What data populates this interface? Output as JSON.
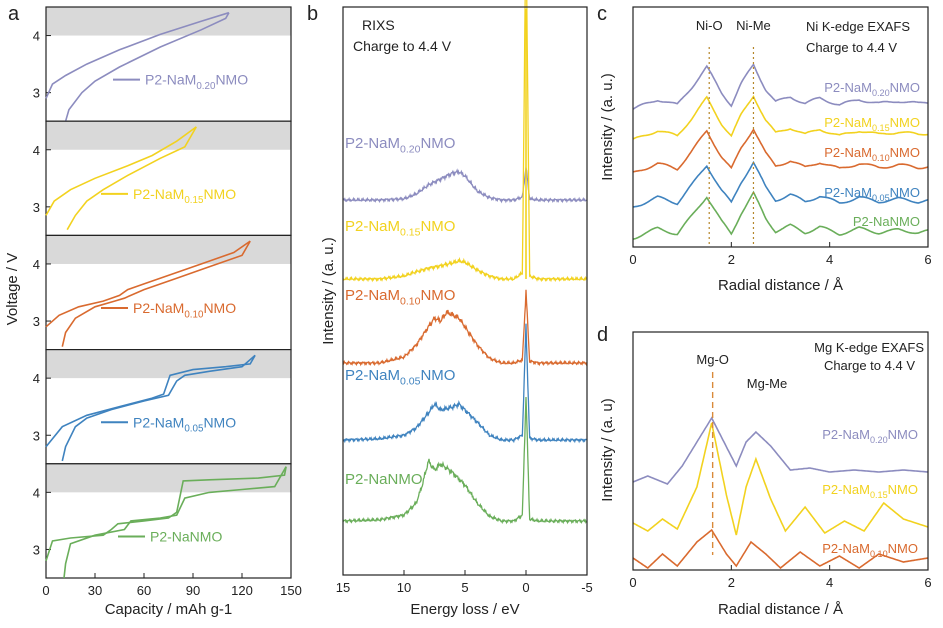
{
  "colors": {
    "purple": "#8c8cbf",
    "yellow": "#f2d21f",
    "orange": "#d96a2f",
    "blue": "#3f83bf",
    "green": "#6aae5a",
    "band": "#d9d9d9",
    "axis": "#222222",
    "dash_ni": "#b5862a",
    "dash_mg": "#d98a3a"
  },
  "chart_data": [
    {
      "panel": "a",
      "type": "line",
      "xlabel": "Capacity / mAh g-1",
      "ylabel": "Voltage / V",
      "xlim": [
        0,
        150
      ],
      "x_ticks": [
        "0",
        "30",
        "60",
        "90",
        "120",
        "150"
      ],
      "subpanels": [
        {
          "label": "P2-NaM0.20NMO",
          "label_parts": {
            "a": "P2-NaM",
            "sub": "0.20",
            "b": "NMO"
          },
          "color": "purple",
          "ylim": [
            2.5,
            4.5
          ],
          "y_ticks": [
            "3",
            "4"
          ],
          "shaded_band": [
            4.0,
            4.5
          ],
          "charge": {
            "x": [
              0,
              4,
              12,
              25,
              45,
              70,
              95,
              112
            ],
            "y": [
              2.9,
              3.15,
              3.3,
              3.5,
              3.75,
              4.02,
              4.25,
              4.4
            ]
          },
          "discharge": {
            "x": [
              112,
              110,
              95,
              70,
              45,
              30,
              22,
              14,
              12
            ],
            "y": [
              4.4,
              4.3,
              4.1,
              3.8,
              3.45,
              3.2,
              3.0,
              2.7,
              2.5
            ]
          }
        },
        {
          "label": "P2-NaM0.15NMO",
          "label_parts": {
            "a": "P2-NaM",
            "sub": "0.15",
            "b": "NMO"
          },
          "color": "yellow",
          "ylim": [
            2.5,
            4.5
          ],
          "y_ticks": [
            "3",
            "4"
          ],
          "shaded_band": [
            4.0,
            4.5
          ],
          "charge": {
            "x": [
              0,
              5,
              15,
              30,
              50,
              65,
              80,
              92
            ],
            "y": [
              2.85,
              3.1,
              3.3,
              3.5,
              3.72,
              3.9,
              4.15,
              4.4
            ]
          },
          "discharge": {
            "x": [
              92,
              85,
              70,
              50,
              35,
              25,
              18,
              13
            ],
            "y": [
              4.4,
              4.05,
              3.85,
              3.55,
              3.3,
              3.1,
              2.85,
              2.6
            ]
          }
        },
        {
          "label": "P2-NaM0.10NMO",
          "label_parts": {
            "a": "P2-NaM",
            "sub": "0.10",
            "b": "NMO"
          },
          "color": "orange",
          "ylim": [
            2.5,
            4.5
          ],
          "y_ticks": [
            "3",
            "4"
          ],
          "shaded_band": [
            4.0,
            4.5
          ],
          "charge": {
            "x": [
              0,
              8,
              20,
              35,
              45,
              50,
              60,
              80,
              100,
              115,
              125
            ],
            "y": [
              2.9,
              3.1,
              3.25,
              3.35,
              3.45,
              3.55,
              3.65,
              3.85,
              4.05,
              4.2,
              4.4
            ]
          },
          "discharge": {
            "x": [
              125,
              120,
              100,
              80,
              60,
              48,
              42,
              30,
              18,
              12,
              10
            ],
            "y": [
              4.4,
              4.15,
              3.95,
              3.75,
              3.55,
              3.4,
              3.35,
              3.25,
              3.05,
              2.8,
              2.55
            ]
          }
        },
        {
          "label": "P2-NaM0.05NMO",
          "label_parts": {
            "a": "P2-NaM",
            "sub": "0.05",
            "b": "NMO"
          },
          "color": "blue",
          "ylim": [
            2.5,
            4.5
          ],
          "y_ticks": [
            "3",
            "4"
          ],
          "shaded_band": [
            4.0,
            4.5
          ],
          "charge": {
            "x": [
              0,
              10,
              25,
              45,
              65,
              72,
              76,
              90,
              110,
              125,
              128
            ],
            "y": [
              2.8,
              3.15,
              3.35,
              3.5,
              3.65,
              3.72,
              4.05,
              4.15,
              4.2,
              4.25,
              4.4
            ]
          },
          "discharge": {
            "x": [
              128,
              120,
              100,
              85,
              80,
              75,
              60,
              40,
              25,
              18,
              12,
              10
            ],
            "y": [
              4.4,
              4.2,
              4.12,
              4.05,
              3.95,
              3.7,
              3.6,
              3.45,
              3.3,
              3.15,
              2.8,
              2.55
            ]
          }
        },
        {
          "label": "P2-NaNMO",
          "label_parts": {
            "a": "P2-NaNMO",
            "sub": "",
            "b": ""
          },
          "color": "green",
          "ylim": [
            2.5,
            4.5
          ],
          "y_ticks": [
            "3",
            "4"
          ],
          "shaded_band": [
            4.0,
            4.5
          ],
          "charge": {
            "x": [
              0,
              4,
              15,
              35,
              40,
              44,
              60,
              75,
              80,
              84,
              100,
              130,
              146,
              147
            ],
            "y": [
              2.8,
              3.15,
              3.2,
              3.25,
              3.35,
              3.45,
              3.5,
              3.55,
              3.65,
              4.2,
              4.22,
              4.25,
              4.3,
              4.45
            ]
          },
          "discharge": {
            "x": [
              147,
              140,
              120,
              100,
              85,
              80,
              70,
              52,
              48,
              30,
              15,
              12,
              11
            ],
            "y": [
              4.45,
              4.1,
              4.05,
              4.0,
              3.9,
              3.6,
              3.55,
              3.5,
              3.35,
              3.25,
              3.1,
              2.75,
              2.5
            ]
          }
        }
      ]
    },
    {
      "panel": "b",
      "type": "line",
      "title_lines": [
        "RIXS",
        "Charge to 4.4 V"
      ],
      "xlabel": "Energy loss / eV",
      "ylabel": "Intensity / (a. u.)",
      "xlim": [
        15,
        -5
      ],
      "x_ticks": [
        "15",
        "10",
        "5",
        "0",
        "-5"
      ],
      "elastic_peak_x": 0,
      "series": [
        {
          "label_parts": {
            "a": "P2-NaM",
            "sub": "0.20",
            "b": "NMO"
          },
          "color": "purple",
          "baseline": 0.0,
          "x": [
            15,
            12,
            10,
            9,
            8,
            7,
            6,
            5.5,
            5,
            4,
            3,
            2,
            1,
            0.3,
            0,
            -0.3,
            -1,
            -5
          ],
          "y": [
            0,
            0,
            0.02,
            0.1,
            0.25,
            0.35,
            0.45,
            0.47,
            0.4,
            0.15,
            0.04,
            0,
            0,
            0.05,
            0.55,
            0.02,
            0,
            0
          ]
        },
        {
          "label_parts": {
            "a": "P2-NaM",
            "sub": "0.15",
            "b": "NMO"
          },
          "color": "yellow",
          "baseline": 1.2,
          "x": [
            15,
            12,
            10,
            9,
            8,
            7,
            6,
            5.5,
            5,
            4,
            3,
            2,
            1,
            0.3,
            0,
            -0.3,
            -1,
            -5
          ],
          "y": [
            0,
            0,
            0.05,
            0.12,
            0.18,
            0.22,
            0.27,
            0.3,
            0.28,
            0.15,
            0.05,
            0,
            0,
            0.1,
            6.0,
            0.05,
            0,
            0
          ]
        },
        {
          "label_parts": {
            "a": "P2-NaM",
            "sub": "0.10",
            "b": "NMO"
          },
          "color": "orange",
          "baseline": 2.4,
          "x": [
            15,
            12,
            10,
            9,
            8,
            7.5,
            7,
            6.5,
            6,
            5.5,
            5,
            4,
            3,
            2,
            1,
            0.3,
            0,
            -0.3,
            -1,
            -5
          ],
          "y": [
            0,
            0,
            0.1,
            0.3,
            0.6,
            0.75,
            0.7,
            0.85,
            0.8,
            0.75,
            0.6,
            0.3,
            0.08,
            0,
            0,
            0.05,
            1.2,
            0.03,
            0,
            0
          ]
        },
        {
          "label_parts": {
            "a": "P2-NaM",
            "sub": "0.05",
            "b": "NMO"
          },
          "color": "blue",
          "baseline": 3.6,
          "x": [
            15,
            12,
            10,
            9,
            8,
            7.5,
            7,
            6,
            5.5,
            5,
            4,
            3,
            2,
            1,
            0.3,
            0,
            -0.3,
            -1,
            -5
          ],
          "y": [
            0,
            0.02,
            0.08,
            0.2,
            0.45,
            0.6,
            0.5,
            0.55,
            0.6,
            0.5,
            0.3,
            0.08,
            0,
            0,
            0.08,
            1.9,
            0.03,
            0,
            0
          ]
        },
        {
          "label_parts": {
            "a": "P2-NaNMO",
            "sub": "",
            "b": ""
          },
          "color": "green",
          "baseline": 4.8,
          "x": [
            15,
            12,
            10,
            9,
            8.5,
            8,
            7.5,
            7,
            6.5,
            6,
            5,
            4,
            3,
            2,
            1,
            0.3,
            0,
            -0.3,
            -1,
            -5
          ],
          "y": [
            0,
            0.02,
            0.1,
            0.3,
            0.6,
            1.0,
            0.85,
            0.95,
            0.88,
            0.8,
            0.6,
            0.3,
            0.08,
            0,
            0,
            0.1,
            2.1,
            0.03,
            0,
            0
          ]
        }
      ]
    },
    {
      "panel": "c",
      "type": "line",
      "title_lines": [
        "Ni K-edge EXAFS",
        "Charge to 4.4 V"
      ],
      "xlabel": "Radial distance / Å",
      "ylabel": "Intensity / (a. u.)",
      "xlim": [
        0,
        6
      ],
      "x_ticks": [
        "0",
        "2",
        "4",
        "6"
      ],
      "marker_lines": [
        {
          "label": "Ni-O",
          "x": 1.55
        },
        {
          "label": "Ni-Me",
          "x": 2.45
        }
      ],
      "series": [
        {
          "label_parts": {
            "a": "P2-NaM",
            "sub": "0.20",
            "b": "NMO"
          },
          "color": "purple",
          "offset": 4.0
        },
        {
          "label_parts": {
            "a": "P2-NaM",
            "sub": "0.15",
            "b": "NMO"
          },
          "color": "yellow",
          "offset": 3.0
        },
        {
          "label_parts": {
            "a": "P2-NaM",
            "sub": "0.10",
            "b": "NMO"
          },
          "color": "orange",
          "offset": 2.0
        },
        {
          "label_parts": {
            "a": "P2-NaM",
            "sub": "0.05",
            "b": "NMO"
          },
          "color": "blue",
          "offset": 1.0
        },
        {
          "label_parts": {
            "a": "P2-NaNMO",
            "sub": "",
            "b": ""
          },
          "color": "green",
          "offset": 0.0
        }
      ],
      "profile": {
        "x": [
          0,
          0.5,
          0.9,
          1.2,
          1.5,
          1.8,
          2.0,
          2.2,
          2.45,
          2.7,
          2.9,
          3.2,
          3.5,
          3.8,
          4.2,
          4.6,
          5.0,
          5.4,
          5.8,
          6.0
        ],
        "y": [
          0.1,
          0.45,
          0.25,
          0.9,
          1.6,
          0.7,
          0.25,
          1.0,
          1.7,
          0.8,
          0.35,
          0.55,
          0.3,
          0.5,
          0.25,
          0.45,
          0.3,
          0.4,
          0.3,
          0.35
        ]
      }
    },
    {
      "panel": "d",
      "type": "line",
      "title_lines": [
        "Mg K-edge EXAFS",
        "Charge to 4.4 V"
      ],
      "xlabel": "Radial distance / Å",
      "ylabel": "Intensity / (a. u)",
      "xlim": [
        0,
        6
      ],
      "x_ticks": [
        "0",
        "2",
        "4",
        "6"
      ],
      "marker_lines": [
        {
          "label": "Mg-O",
          "x": 1.62
        }
      ],
      "annotation": "Mg-Me",
      "series": [
        {
          "label_parts": {
            "a": "P2-NaM",
            "sub": "0.20",
            "b": "NMO"
          },
          "color": "purple",
          "offset": 2.6,
          "x": [
            0,
            0.3,
            0.7,
            1.0,
            1.3,
            1.6,
            1.85,
            2.1,
            2.3,
            2.5,
            2.8,
            3.2,
            3.6,
            4.0,
            4.5,
            5.0,
            5.5,
            6.0
          ],
          "y": [
            0.2,
            0.35,
            0.15,
            0.6,
            1.2,
            1.8,
            1.2,
            0.6,
            1.2,
            1.45,
            1.1,
            0.5,
            0.55,
            0.45,
            0.5,
            0.45,
            0.5,
            0.45
          ]
        },
        {
          "label_parts": {
            "a": "P2-NaM",
            "sub": "0.15",
            "b": "NMO"
          },
          "color": "yellow",
          "offset": 1.2,
          "x": [
            0,
            0.3,
            0.6,
            0.9,
            1.3,
            1.6,
            1.9,
            2.1,
            2.3,
            2.5,
            2.8,
            3.1,
            3.5,
            3.9,
            4.3,
            4.7,
            5.1,
            5.5,
            6.0
          ],
          "y": [
            0.3,
            0.1,
            0.4,
            0.15,
            1.2,
            2.8,
            1.0,
            0.0,
            1.2,
            1.9,
            0.9,
            0.1,
            0.7,
            0.05,
            0.35,
            0.1,
            0.8,
            0.4,
            0.2
          ]
        },
        {
          "label_parts": {
            "a": "P2-NaM",
            "sub": "0.10",
            "b": "NMO"
          },
          "color": "orange",
          "offset": 0.0,
          "x": [
            0,
            0.3,
            0.6,
            0.9,
            1.3,
            1.6,
            1.9,
            2.1,
            2.4,
            2.7,
            3.0,
            3.4,
            3.8,
            4.2,
            4.6,
            5.0,
            5.5,
            6.0
          ],
          "y": [
            0.3,
            0.05,
            0.4,
            0.1,
            0.7,
            1.0,
            0.4,
            0.1,
            0.7,
            0.4,
            0.05,
            0.45,
            0.1,
            0.35,
            0.05,
            0.4,
            0.2,
            0.3
          ]
        }
      ]
    }
  ]
}
